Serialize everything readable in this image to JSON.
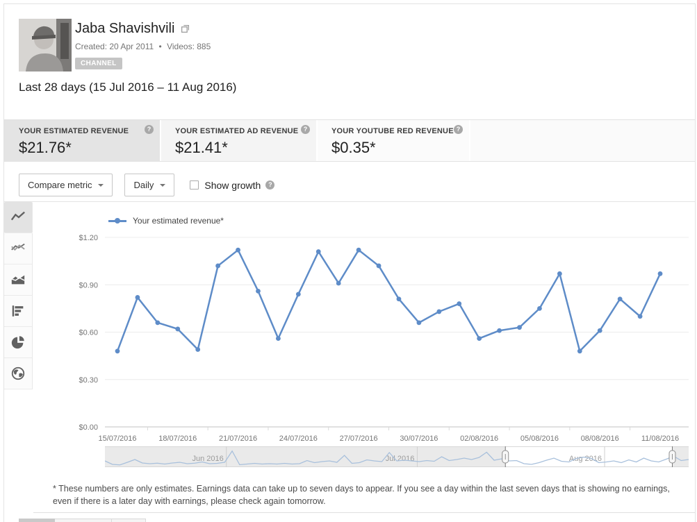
{
  "icons": {
    "help": "?"
  },
  "colors": {
    "accent_blue": "#5e8cc8",
    "sparkline_blue": "#a8c0dc",
    "selected_card_bg": "#e4e4e4",
    "badge_bg": "#c5c5c5"
  },
  "header": {
    "channel_name": "Jaba Shavishvili",
    "created": "Created: 20 Apr 2011",
    "separator": "•",
    "videos": "Videos: 885",
    "badge": "CHANNEL"
  },
  "date_range": "Last 28 days (15 Jul 2016 – 11 Aug 2016)",
  "metrics": [
    {
      "label": "YOUR ESTIMATED REVENUE",
      "value": "$21.76*",
      "selected": true
    },
    {
      "label": "YOUR ESTIMATED AD REVENUE",
      "value": "$21.41*",
      "selected": false
    },
    {
      "label": "YOUR YOUTUBE RED REVENUE",
      "value": "$0.35*",
      "selected": false
    }
  ],
  "controls": {
    "compare_metric_label": "Compare metric",
    "interval_label": "Daily",
    "show_growth_label": "Show growth",
    "show_growth_checked": false
  },
  "sidebar_icons": [
    "line-chart",
    "multi-line-chart",
    "area-chart",
    "bar-chart",
    "pie-chart",
    "map"
  ],
  "chart_data": {
    "type": "line",
    "title": "Your estimated revenue, daily, 15 Jul 2016 - 11 Aug 2016",
    "x": [
      "15/07/2016",
      "16/07/2016",
      "17/07/2016",
      "18/07/2016",
      "19/07/2016",
      "20/07/2016",
      "21/07/2016",
      "22/07/2016",
      "23/07/2016",
      "24/07/2016",
      "25/07/2016",
      "26/07/2016",
      "27/07/2016",
      "28/07/2016",
      "29/07/2016",
      "30/07/2016",
      "31/07/2016",
      "01/08/2016",
      "02/08/2016",
      "03/08/2016",
      "04/08/2016",
      "05/08/2016",
      "06/08/2016",
      "07/08/2016",
      "08/08/2016",
      "09/08/2016",
      "10/08/2016",
      "11/08/2016"
    ],
    "series": [
      {
        "name": "Your estimated revenue*",
        "color": "#5e8cc8",
        "values": [
          0.48,
          0.82,
          0.66,
          0.62,
          0.49,
          1.02,
          1.12,
          0.86,
          0.56,
          0.84,
          1.11,
          0.91,
          1.12,
          1.02,
          0.81,
          0.66,
          0.73,
          0.78,
          0.56,
          0.61,
          0.63,
          0.75,
          0.97,
          0.48,
          0.61,
          0.81,
          0.7,
          0.97
        ]
      }
    ],
    "ylim": [
      0,
      1.2
    ],
    "yticks": [
      "$0.00",
      "$0.30",
      "$0.60",
      "$0.90",
      "$1.20"
    ],
    "xtick_labels": [
      "15/07/2016",
      "18/07/2016",
      "21/07/2016",
      "24/07/2016",
      "27/07/2016",
      "30/07/2016",
      "02/08/2016",
      "05/08/2016",
      "08/08/2016",
      "11/08/2016"
    ],
    "grid": true,
    "legend_position": "top-left",
    "scrubber": {
      "months": [
        {
          "label": "Jun 2016",
          "position": 0.208
        },
        {
          "label": "Jul 2016",
          "position": 0.535
        },
        {
          "label": "Aug 2016",
          "position": 0.856
        }
      ],
      "selection": [
        0.686,
        0.972
      ],
      "sparkline": [
        0.28,
        0.08,
        0.05,
        0.2,
        0.36,
        0.16,
        0.12,
        0.15,
        0.1,
        0.16,
        0.2,
        0.12,
        0.15,
        0.22,
        0.12,
        0.14,
        0.2,
        0.85,
        0.06,
        0.1,
        0.14,
        0.1,
        0.12,
        0.1,
        0.14,
        0.1,
        0.12,
        0.3,
        0.18,
        0.24,
        0.28,
        0.2,
        0.6,
        0.14,
        0.18,
        0.34,
        0.28,
        0.24,
        0.76,
        0.28,
        0.32,
        0.28,
        0.24,
        0.3,
        0.26,
        0.52,
        0.3,
        0.36,
        0.44,
        0.36,
        0.48,
        0.78,
        0.32,
        0.4,
        0.28,
        0.3,
        0.12,
        0.08,
        0.18,
        0.32,
        0.44,
        0.26,
        0.22,
        0.42,
        0.5,
        0.42,
        0.18,
        0.22,
        0.28,
        0.18,
        0.34,
        0.22,
        0.44,
        0.28,
        0.22,
        0.38,
        0.55,
        0.3,
        0.36
      ]
    }
  },
  "footnote": "* These numbers are only estimates. Earnings data can take up to seven days to appear. If you see a day within the last seven days that is showing no earnings, even if there is a later day with earnings, please check again tomorrow."
}
